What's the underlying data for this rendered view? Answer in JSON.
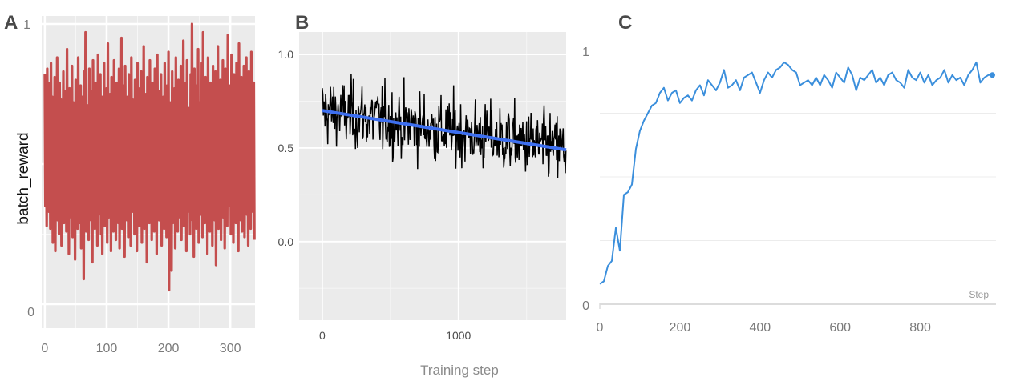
{
  "panels": {
    "a": "A",
    "b": "B",
    "c": "C"
  },
  "colors": {
    "panel_a_line": "#c44e4e",
    "panel_b_line": "#000000",
    "panel_b_trend": "#3d6ff0",
    "panel_c_line": "#3b8fdc",
    "ggplot_bg": "#ebebeb"
  },
  "chart_data": [
    {
      "panel": "A",
      "type": "line",
      "ylabel": "batch_reward",
      "xlabel": "",
      "xlim": [
        -5,
        340
      ],
      "ylim": [
        0,
        1
      ],
      "x_ticks": [
        0,
        100,
        200,
        300
      ],
      "y_ticks": [
        0,
        1
      ],
      "grid": true,
      "series": [
        {
          "x_start": 0,
          "x_step": 1,
          "values": [
            0.82,
            0.35,
            0.71,
            0.28,
            0.84,
            0.46,
            0.79,
            0.33,
            0.69,
            0.27,
            0.86,
            0.41,
            0.74,
            0.22,
            0.63,
            0.34,
            0.81,
            0.19,
            0.72,
            0.43,
            0.88,
            0.3,
            0.66,
            0.25,
            0.79,
            0.47,
            0.73,
            0.21,
            0.68,
            0.36,
            0.83,
            0.29,
            0.76,
            0.4,
            0.62,
            0.26,
            0.91,
            0.34,
            0.7,
            0.18,
            0.77,
            0.45,
            0.67,
            0.31,
            0.85,
            0.24,
            0.72,
            0.39,
            0.64,
            0.16,
            0.8,
            0.37,
            0.75,
            0.27,
            0.88,
            0.42,
            0.61,
            0.29,
            0.78,
            0.2,
            0.74,
            0.44,
            0.69,
            0.09,
            0.83,
            0.33,
            0.97,
            0.26,
            0.71,
            0.38,
            0.66,
            0.23,
            0.84,
            0.41,
            0.76,
            0.3,
            0.63,
            0.15,
            0.87,
            0.35,
            0.72,
            0.27,
            0.79,
            0.46,
            0.65,
            0.21,
            0.89,
            0.32,
            0.7,
            0.39,
            0.82,
            0.25,
            0.74,
            0.18,
            0.68,
            0.43,
            0.86,
            0.28,
            0.61,
            0.36,
            0.77,
            0.22,
            0.93,
            0.31,
            0.69,
            0.45,
            0.75,
            0.19,
            0.81,
            0.34,
            0.64,
            0.26,
            0.87,
            0.4,
            0.72,
            0.23,
            0.79,
            0.37,
            0.66,
            0.29,
            0.84,
            0.2,
            0.71,
            0.44,
            0.95,
            0.27,
            0.63,
            0.35,
            0.78,
            0.17,
            0.85,
            0.41,
            0.69,
            0.3,
            0.74,
            0.24,
            0.82,
            0.38,
            0.67,
            0.21,
            0.88,
            0.33,
            0.73,
            0.46,
            0.62,
            0.25,
            0.8,
            0.36,
            0.71,
            0.19,
            0.86,
            0.42,
            0.65,
            0.28,
            0.77,
            0.31,
            0.83,
            0.22,
            0.7,
            0.4,
            0.92,
            0.27,
            0.68,
            0.34,
            0.75,
            0.15,
            0.81,
            0.44,
            0.64,
            0.29,
            0.87,
            0.37,
            0.72,
            0.23,
            0.79,
            0.41,
            0.66,
            0.26,
            0.84,
            0.32,
            0.7,
            0.18,
            0.89,
            0.39,
            0.63,
            0.3,
            0.76,
            0.45,
            0.82,
            0.21,
            0.69,
            0.35,
            0.74,
            0.27,
            0.86,
            0.42,
            0.61,
            0.24,
            0.78,
            0.33,
            0.9,
            0.05,
            0.72,
            0.38,
            0.65,
            0.12,
            0.83,
            0.29,
            0.71,
            0.44,
            0.77,
            0.2,
            0.88,
            0.36,
            0.64,
            0.26,
            0.8,
            0.41,
            0.69,
            0.31,
            0.85,
            0.23,
            0.73,
            0.47,
            0.94,
            0.28,
            0.66,
            0.37,
            0.79,
            0.19,
            0.87,
            0.33,
            0.7,
            0.43,
            0.62,
            0.25,
            0.82,
            0.39,
            1.0,
            0.3,
            0.75,
            0.17,
            0.84,
            0.45,
            0.67,
            0.27,
            0.78,
            0.35,
            0.91,
            0.22,
            0.72,
            0.41,
            0.63,
            0.32,
            0.86,
            0.24,
            0.97,
            0.38,
            0.69,
            0.29,
            0.81,
            0.44,
            0.74,
            0.18,
            0.88,
            0.34,
            0.65,
            0.26,
            0.79,
            0.4,
            0.71,
            0.21,
            0.85,
            0.36,
            0.68,
            0.3,
            0.83,
            0.14,
            0.76,
            0.43,
            0.92,
            0.27,
            0.64,
            0.37,
            0.8,
            0.23,
            0.73,
            0.46,
            0.87,
            0.31,
            0.69,
            0.2,
            0.84,
            0.39,
            0.66,
            0.28,
            0.96,
            0.35,
            0.72,
            0.42,
            0.78,
            0.25,
            0.89,
            0.33,
            0.7,
            0.22,
            0.82,
            0.41,
            0.67,
            0.29,
            0.86,
            0.37,
            0.74,
            0.19,
            0.93,
            0.44,
            0.63,
            0.3,
            0.81,
            0.26,
            0.77,
            0.38,
            0.85,
            0.24,
            0.71,
            0.4,
            0.88,
            0.32,
            0.68,
            0.21,
            0.83,
            0.36,
            0.75,
            0.27,
            0.9,
            0.43,
            0.66,
            0.33,
            0.79,
            0.23
          ]
        }
      ]
    },
    {
      "panel": "B",
      "type": "line",
      "xlabel": "Training step",
      "ylabel": "",
      "xlim": [
        -170,
        1790
      ],
      "ylim": [
        -0.42,
        1.12
      ],
      "x_ticks": [
        0,
        1000
      ],
      "y_ticks": [
        0.0,
        0.5,
        1.0
      ],
      "y_tick_labels": [
        "0.0",
        "0.5",
        "1.0"
      ],
      "grid": true,
      "series": [
        {
          "summary": "dense noisy reward trace",
          "x_start": 0,
          "x_end": 1790,
          "mean_start": 0.7,
          "mean_end": 0.49,
          "noise_sd": 0.12
        },
        {
          "summary": "linear trend",
          "x": [
            0,
            1790
          ],
          "y": [
            0.7,
            0.49
          ]
        }
      ]
    },
    {
      "panel": "C",
      "type": "line",
      "xlabel": "Step",
      "ylabel": "",
      "xlim": [
        0,
        985
      ],
      "ylim": [
        0,
        1
      ],
      "x_ticks": [
        0,
        200,
        400,
        600,
        800
      ],
      "y_ticks": [
        0,
        1
      ],
      "grid": true,
      "series": [
        {
          "x": [
            0,
            10,
            20,
            30,
            40,
            50,
            60,
            70,
            80,
            90,
            100,
            110,
            120,
            130,
            140,
            150,
            160,
            170,
            180,
            190,
            200,
            210,
            220,
            230,
            240,
            250,
            260,
            270,
            280,
            290,
            300,
            310,
            320,
            330,
            340,
            350,
            360,
            370,
            380,
            390,
            400,
            410,
            420,
            430,
            440,
            450,
            460,
            470,
            480,
            490,
            500,
            510,
            520,
            530,
            540,
            550,
            560,
            570,
            580,
            590,
            600,
            610,
            620,
            630,
            640,
            650,
            660,
            670,
            680,
            690,
            700,
            710,
            720,
            730,
            740,
            750,
            760,
            770,
            780,
            790,
            800,
            810,
            820,
            830,
            840,
            850,
            860,
            870,
            880,
            890,
            900,
            910,
            920,
            930,
            940,
            950,
            960,
            970,
            980
          ],
          "y": [
            0.08,
            0.09,
            0.15,
            0.17,
            0.3,
            0.21,
            0.43,
            0.44,
            0.47,
            0.61,
            0.68,
            0.72,
            0.75,
            0.78,
            0.79,
            0.83,
            0.85,
            0.8,
            0.83,
            0.84,
            0.79,
            0.81,
            0.82,
            0.8,
            0.84,
            0.86,
            0.82,
            0.88,
            0.86,
            0.84,
            0.87,
            0.92,
            0.85,
            0.86,
            0.88,
            0.84,
            0.89,
            0.9,
            0.91,
            0.87,
            0.83,
            0.88,
            0.91,
            0.89,
            0.92,
            0.93,
            0.95,
            0.94,
            0.92,
            0.91,
            0.86,
            0.87,
            0.88,
            0.86,
            0.89,
            0.86,
            0.9,
            0.88,
            0.85,
            0.91,
            0.89,
            0.87,
            0.93,
            0.9,
            0.84,
            0.89,
            0.88,
            0.9,
            0.92,
            0.87,
            0.89,
            0.86,
            0.9,
            0.91,
            0.88,
            0.87,
            0.85,
            0.92,
            0.89,
            0.88,
            0.91,
            0.87,
            0.9,
            0.86,
            0.88,
            0.89,
            0.92,
            0.87,
            0.9,
            0.88,
            0.89,
            0.86,
            0.9,
            0.92,
            0.95,
            0.87,
            0.89,
            0.9,
            0.9
          ]
        }
      ]
    }
  ]
}
